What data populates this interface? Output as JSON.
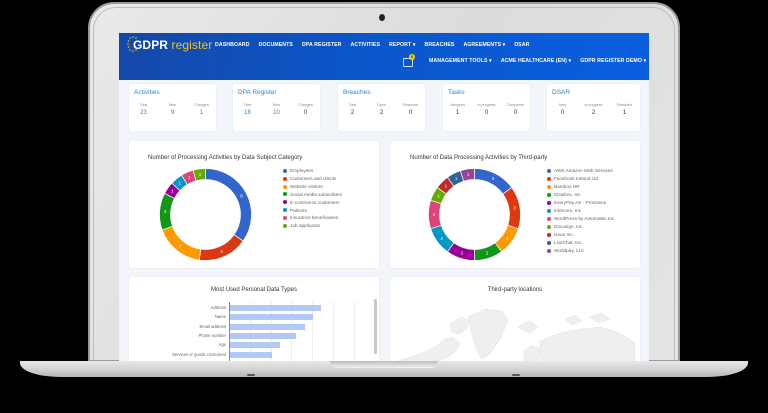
{
  "app": {
    "logo_main": "GDPR",
    "logo_accent": "register"
  },
  "nav": {
    "primary": [
      "DASHBOARD",
      "DOCUMENTS",
      "DPA REGISTER",
      "ACTIVITIES",
      "REPORT ▾",
      "BREACHES",
      "AGREEMENTS ▾",
      "DSAR"
    ],
    "secondary": [
      "MANAGEMENT TOOLS ▾",
      "ACME HEALTHCARE (EN) ▾",
      "GDPR REGISTER DEMO ▾"
    ],
    "notification_count": "0"
  },
  "stats": [
    {
      "title": "Activities",
      "cols": [
        {
          "label": "Total",
          "value": "23"
        },
        {
          "label": "New",
          "value": "9"
        },
        {
          "label": "Changed",
          "value": "1"
        }
      ],
      "blue": true
    },
    {
      "title": "DPA Register",
      "cols": [
        {
          "label": "Total",
          "value": "18"
        },
        {
          "label": "New",
          "value": "10"
        },
        {
          "label": "Changed",
          "value": "0"
        }
      ],
      "blue": true
    },
    {
      "title": "Breaches",
      "cols": [
        {
          "label": "Total",
          "value": "2"
        },
        {
          "label": "Open",
          "value": "2"
        },
        {
          "label": "Resolved",
          "value": "0"
        }
      ],
      "blue": false
    },
    {
      "title": "Tasks",
      "cols": [
        {
          "label": "Assigned",
          "value": "1"
        },
        {
          "label": "In progress",
          "value": "0"
        },
        {
          "label": "Completed",
          "value": "0"
        }
      ],
      "blue": false
    },
    {
      "title": "DSAR",
      "cols": [
        {
          "label": "New",
          "value": "0"
        },
        {
          "label": "In progress",
          "value": "2"
        },
        {
          "label": "Resolved",
          "value": "1"
        }
      ],
      "blue": false
    }
  ],
  "chart_data": [
    {
      "type": "pie",
      "title": "Number of Processing Activities by Data Subject Category",
      "categories": [
        "Employees",
        "Customers and clients",
        "Website visitors",
        "Social media subscribers",
        "E-commerce customers",
        "Patients",
        "Insurance beneficiaries",
        "Job applicants"
      ],
      "values": [
        8,
        4,
        4,
        3,
        1,
        1,
        1,
        1
      ],
      "colors": [
        "#3366cc",
        "#dc3912",
        "#ff9900",
        "#109618",
        "#990099",
        "#0099c6",
        "#dd4477",
        "#66aa00"
      ],
      "legend_position": "right"
    },
    {
      "type": "pie",
      "title": "Number of Data Processing Activities by Third-party",
      "categories": [
        "AWS Amazon Web Services",
        "Facebook Ireland Ltd",
        "Bamboo HR",
        "Dropbox, Inc",
        "EveryPay AS - Processor",
        "Intercom, Inc",
        "WordPress by Automattic Inc",
        "Docusign, Inc.",
        "Issuu Inc.",
        "LiveChat, Inc.",
        "Worldpay, LLC"
      ],
      "values": [
        3,
        3,
        2,
        2,
        2,
        2,
        2,
        1,
        1,
        1,
        1
      ],
      "colors": [
        "#3366cc",
        "#dc3912",
        "#ff9900",
        "#109618",
        "#990099",
        "#0099c6",
        "#dd4477",
        "#66aa00",
        "#b82e2e",
        "#316395",
        "#994499"
      ],
      "legend_position": "right"
    },
    {
      "type": "bar",
      "orientation": "horizontal",
      "title": "Most Used Personal Data Types",
      "categories": [
        "Address",
        "Name",
        "Email address",
        "Phone number",
        "Age",
        "Services or goods consumed",
        "Address - private"
      ],
      "values": [
        11,
        10,
        9,
        8,
        6,
        5,
        4
      ],
      "color": "#b2c9f6",
      "grid": true
    }
  ],
  "map": {
    "title": "Third-party locations"
  }
}
